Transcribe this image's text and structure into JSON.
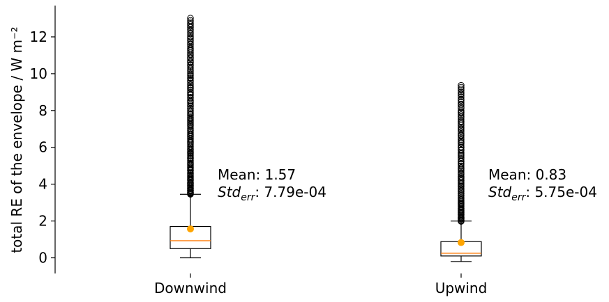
{
  "chart_data": {
    "type": "box",
    "categories": [
      "Downwind",
      "Upwind"
    ],
    "ylabel": "total RE of the envelope / W m⁻²",
    "ylim": [
      -0.85,
      13.7
    ],
    "yticks": [
      0,
      2,
      4,
      6,
      8,
      10,
      12
    ],
    "boxes": [
      {
        "name": "Downwind",
        "whisker_low": 0.0,
        "q1": 0.5,
        "median": 0.93,
        "q3": 1.7,
        "whisker_high": 3.45,
        "mean": 1.57,
        "outlier_range": [
          3.45,
          13.0
        ],
        "annotation": {
          "mean_text": "Mean: 1.57",
          "std_prefix": "Std",
          "std_subscript": "err",
          "std_value": ": 7.79e-04"
        }
      },
      {
        "name": "Upwind",
        "whisker_low": -0.2,
        "q1": 0.1,
        "median": 0.25,
        "q3": 0.88,
        "whisker_high": 2.0,
        "mean": 0.83,
        "outlier_range": [
          2.0,
          9.35
        ],
        "annotation": {
          "mean_text": "Mean: 0.83",
          "std_prefix": "Std",
          "std_subscript": "err",
          "std_value": ": 5.75e-04"
        }
      }
    ],
    "colors": {
      "median": "#ff7f0e",
      "mean": "#ffa500",
      "box": "#000000",
      "outlier": "#000000"
    },
    "grid": false
  }
}
